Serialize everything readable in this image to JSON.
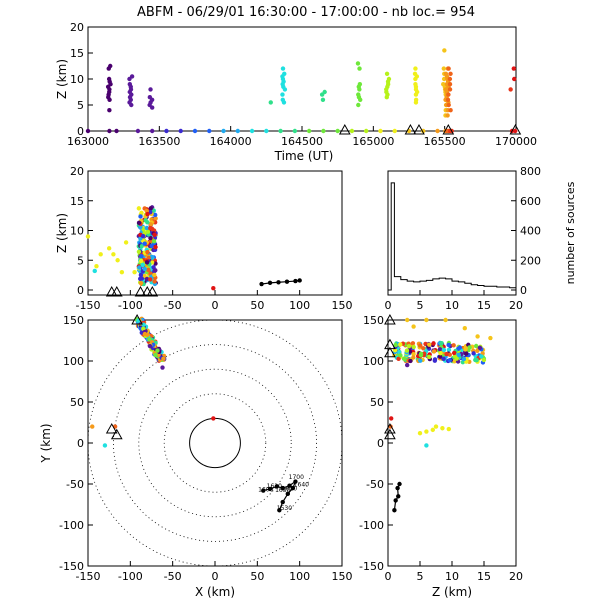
{
  "title": "ABFM - 06/29/01 16:30:00 - 17:00:00 - nb loc.=    954",
  "colors": {
    "sequence": [
      "#4a006e",
      "#5a1a9a",
      "#3a2ad0",
      "#1f5ff5",
      "#1faaf0",
      "#1fe0e0",
      "#2fe08a",
      "#6ee83a",
      "#b6f21a",
      "#f0f01a",
      "#f5c41a",
      "#f59a1a",
      "#f0641a",
      "#e8341a",
      "#e01414"
    ],
    "axes": "#000000",
    "track": "#000000"
  },
  "chart_data": [
    {
      "id": "time-height",
      "type": "scatter",
      "xlabel": "Time (UT)",
      "ylabel": "Z (km)",
      "xlim": [
        163000,
        170000
      ],
      "ylim": [
        0,
        20
      ],
      "xticks": [
        "163000",
        "163500",
        "164000",
        "164500",
        "165000",
        "165500",
        "170000"
      ],
      "xtick_values": [
        163000,
        163500,
        164000,
        164500,
        165000,
        165500,
        170000
      ],
      "yticks": [
        0,
        5,
        10,
        15,
        20
      ],
      "ground_points_x": [
        163000,
        163150,
        163200,
        163350,
        163450,
        163550,
        163650,
        163750,
        163850,
        163950,
        164050,
        164150,
        164250,
        164350,
        164450,
        164550,
        164650,
        164750,
        164850,
        164950,
        165050,
        165150,
        165250,
        165350,
        165450,
        165550,
        165650,
        165750,
        165850,
        165950,
        169750,
        169950
      ],
      "stations_x": [
        164800,
        165260,
        165320,
        165730,
        169960
      ],
      "columns": [
        {
          "x": 163150,
          "z": [
            4,
            6,
            6.5,
            7,
            7.5,
            8,
            8.5,
            9,
            9.5,
            10,
            12,
            12.5
          ],
          "color": "#4a006e"
        },
        {
          "x": 163300,
          "z": [
            5,
            5.5,
            6,
            6.5,
            7,
            7.5,
            8,
            8.5,
            9,
            10,
            10.5
          ],
          "color": "#5a1a9a"
        },
        {
          "x": 163440,
          "z": [
            4.5,
            5,
            5.5,
            6,
            6.5,
            8
          ],
          "color": "#5a1a9a"
        },
        {
          "x": 164280,
          "z": [
            5.5
          ],
          "color": "#2fe08a"
        },
        {
          "x": 164370,
          "z": [
            5.5,
            6,
            7,
            8,
            8.5,
            9,
            9.5,
            10,
            10.5,
            11,
            12
          ],
          "color": "#1fe0e0"
        },
        {
          "x": 164650,
          "z": [
            6,
            7,
            7.5
          ],
          "color": "#2fe08a"
        },
        {
          "x": 164900,
          "z": [
            5,
            6,
            6.5,
            7,
            8,
            8.5,
            9,
            12,
            13
          ],
          "color": "#6ee83a"
        },
        {
          "x": 165100,
          "z": [
            6.5,
            7,
            7.5,
            8,
            8.5,
            9,
            9.5,
            10,
            11
          ],
          "color": "#b6f21a"
        },
        {
          "x": 165300,
          "z": [
            5.5,
            6,
            7,
            7.5,
            8,
            8.5,
            9,
            10,
            10.5,
            11,
            12
          ],
          "color": "#f0f01a"
        },
        {
          "x": 165500,
          "z": [
            3,
            4,
            5,
            6,
            7,
            7.5,
            8,
            8.5,
            9,
            10,
            11,
            12,
            15.5
          ],
          "color": "#f5c41a"
        },
        {
          "x": 165650,
          "z": [
            3,
            4,
            5,
            5.5,
            6,
            6.5,
            7,
            7.5,
            8,
            8.5,
            9,
            9.5,
            10,
            10.5,
            11,
            12
          ],
          "color": "#f59a1a"
        },
        {
          "x": 165800,
          "z": [
            4,
            5,
            6,
            7,
            8,
            9,
            10,
            11,
            12
          ],
          "color": "#f0641a"
        },
        {
          "x": 169600,
          "z": [
            8
          ],
          "color": "#e8341a"
        },
        {
          "x": 169950,
          "z": [
            10,
            12
          ],
          "color": "#e01414"
        }
      ]
    },
    {
      "id": "x-z",
      "type": "scatter",
      "xlabel": "",
      "ylabel": "Z (km)",
      "xlim": [
        -150,
        150
      ],
      "ylim": [
        0,
        20
      ],
      "xticks": [
        -150,
        -100,
        -50,
        0,
        50,
        100,
        150
      ],
      "yticks": [
        0,
        5,
        10,
        15,
        20
      ],
      "stations_x": [
        -122,
        -116,
        -88,
        -80,
        -74
      ],
      "track_points": [
        [
          55,
          1
        ],
        [
          65,
          1.2
        ],
        [
          75,
          1.3
        ],
        [
          85,
          1.4
        ],
        [
          95,
          1.5
        ],
        [
          100,
          1.6
        ]
      ]
    },
    {
      "id": "histogram",
      "type": "bar",
      "xlabel": "",
      "ylabel": "number of sources",
      "xlim": [
        0,
        20
      ],
      "ylim": [
        0,
        800
      ],
      "xticks": [
        0,
        5,
        10,
        15,
        20
      ],
      "yticks": [
        0,
        200,
        400,
        600,
        800
      ],
      "bins_x": [
        0,
        0.5,
        1,
        2,
        3,
        4,
        5,
        6,
        7,
        8,
        9,
        10,
        11,
        12,
        13,
        14,
        15,
        16,
        17,
        18,
        19,
        20
      ],
      "counts": [
        0,
        720,
        90,
        70,
        60,
        55,
        60,
        65,
        75,
        80,
        75,
        60,
        55,
        45,
        35,
        30,
        25,
        25,
        20,
        20,
        15
      ]
    },
    {
      "id": "x-y",
      "type": "scatter",
      "xlabel": "X (km)",
      "ylabel": "Y (km)",
      "xlim": [
        -150,
        150
      ],
      "ylim": [
        -150,
        150
      ],
      "xticks": [
        -150,
        -100,
        -50,
        0,
        50,
        100,
        150
      ],
      "yticks": [
        -150,
        -100,
        -50,
        0,
        50,
        100,
        150
      ],
      "range_rings_km": [
        30,
        60,
        90,
        120,
        150
      ],
      "stations": [
        [
          -92,
          150
        ],
        [
          -122,
          17
        ],
        [
          -116,
          10
        ]
      ],
      "track_labels": [
        "1700",
        "1640",
        "1620",
        "1630",
        "1600",
        "1610",
        "1530"
      ],
      "track_points": [
        [
          57,
          -58
        ],
        [
          65,
          -56
        ],
        [
          73,
          -53
        ],
        [
          80,
          -55
        ],
        [
          88,
          -52
        ],
        [
          95,
          -47
        ],
        [
          92,
          -55
        ],
        [
          86,
          -62
        ],
        [
          80,
          -72
        ],
        [
          76,
          -82
        ]
      ]
    },
    {
      "id": "z-y",
      "type": "scatter",
      "xlabel": "Z (km)",
      "ylabel": "",
      "xlim": [
        0,
        20
      ],
      "ylim": [
        -150,
        150
      ],
      "xticks": [
        0,
        5,
        10,
        15,
        20
      ],
      "yticks": [
        -150,
        -100,
        -50,
        0,
        50,
        100,
        150
      ],
      "stations": [
        [
          0.3,
          150
        ],
        [
          0.3,
          120
        ],
        [
          0.3,
          110
        ],
        [
          0.3,
          17
        ],
        [
          0.3,
          10
        ]
      ],
      "track_points": [
        [
          1.8,
          -50
        ],
        [
          1.5,
          -55
        ],
        [
          1.6,
          -65
        ],
        [
          1.2,
          -70
        ],
        [
          1,
          -82
        ]
      ]
    }
  ]
}
